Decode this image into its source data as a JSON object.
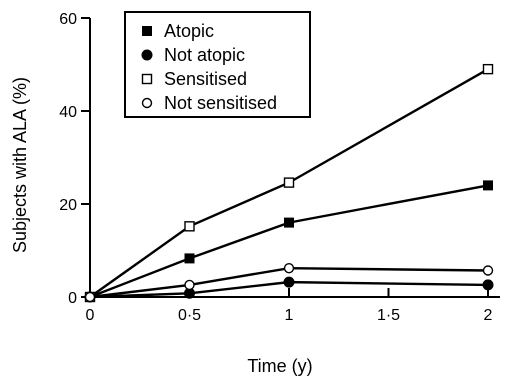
{
  "chart_data": {
    "type": "line",
    "title": "",
    "xlabel": "Time (y)",
    "ylabel": "Subjects with ALA (%)",
    "xlim": [
      0,
      2
    ],
    "ylim": [
      0,
      60
    ],
    "x_ticks": [
      0,
      0.5,
      1,
      1.5,
      2
    ],
    "x_tick_labels": [
      "0",
      "0·5",
      "1",
      "1·5",
      "2"
    ],
    "y_ticks": [
      0,
      20,
      40,
      60
    ],
    "y_tick_labels": [
      "0",
      "20",
      "40",
      "60"
    ],
    "grid": false,
    "legend_position": "top-left",
    "x": [
      0,
      0.5,
      1,
      2
    ],
    "series": [
      {
        "name": "Atopic",
        "marker": "filled-square",
        "values": [
          0,
          8.3,
          16,
          24
        ]
      },
      {
        "name": "Not atopic",
        "marker": "filled-circle",
        "values": [
          0,
          0.8,
          3.2,
          2.6
        ]
      },
      {
        "name": "Sensitised",
        "marker": "open-square",
        "values": [
          0,
          15.2,
          24.6,
          49
        ]
      },
      {
        "name": "Not sensitised",
        "marker": "open-circle",
        "values": [
          0,
          2.6,
          6.2,
          5.7
        ]
      }
    ],
    "colors": {
      "line": "#000000",
      "marker_fill": "#000000",
      "open_fill": "#ffffff"
    }
  }
}
